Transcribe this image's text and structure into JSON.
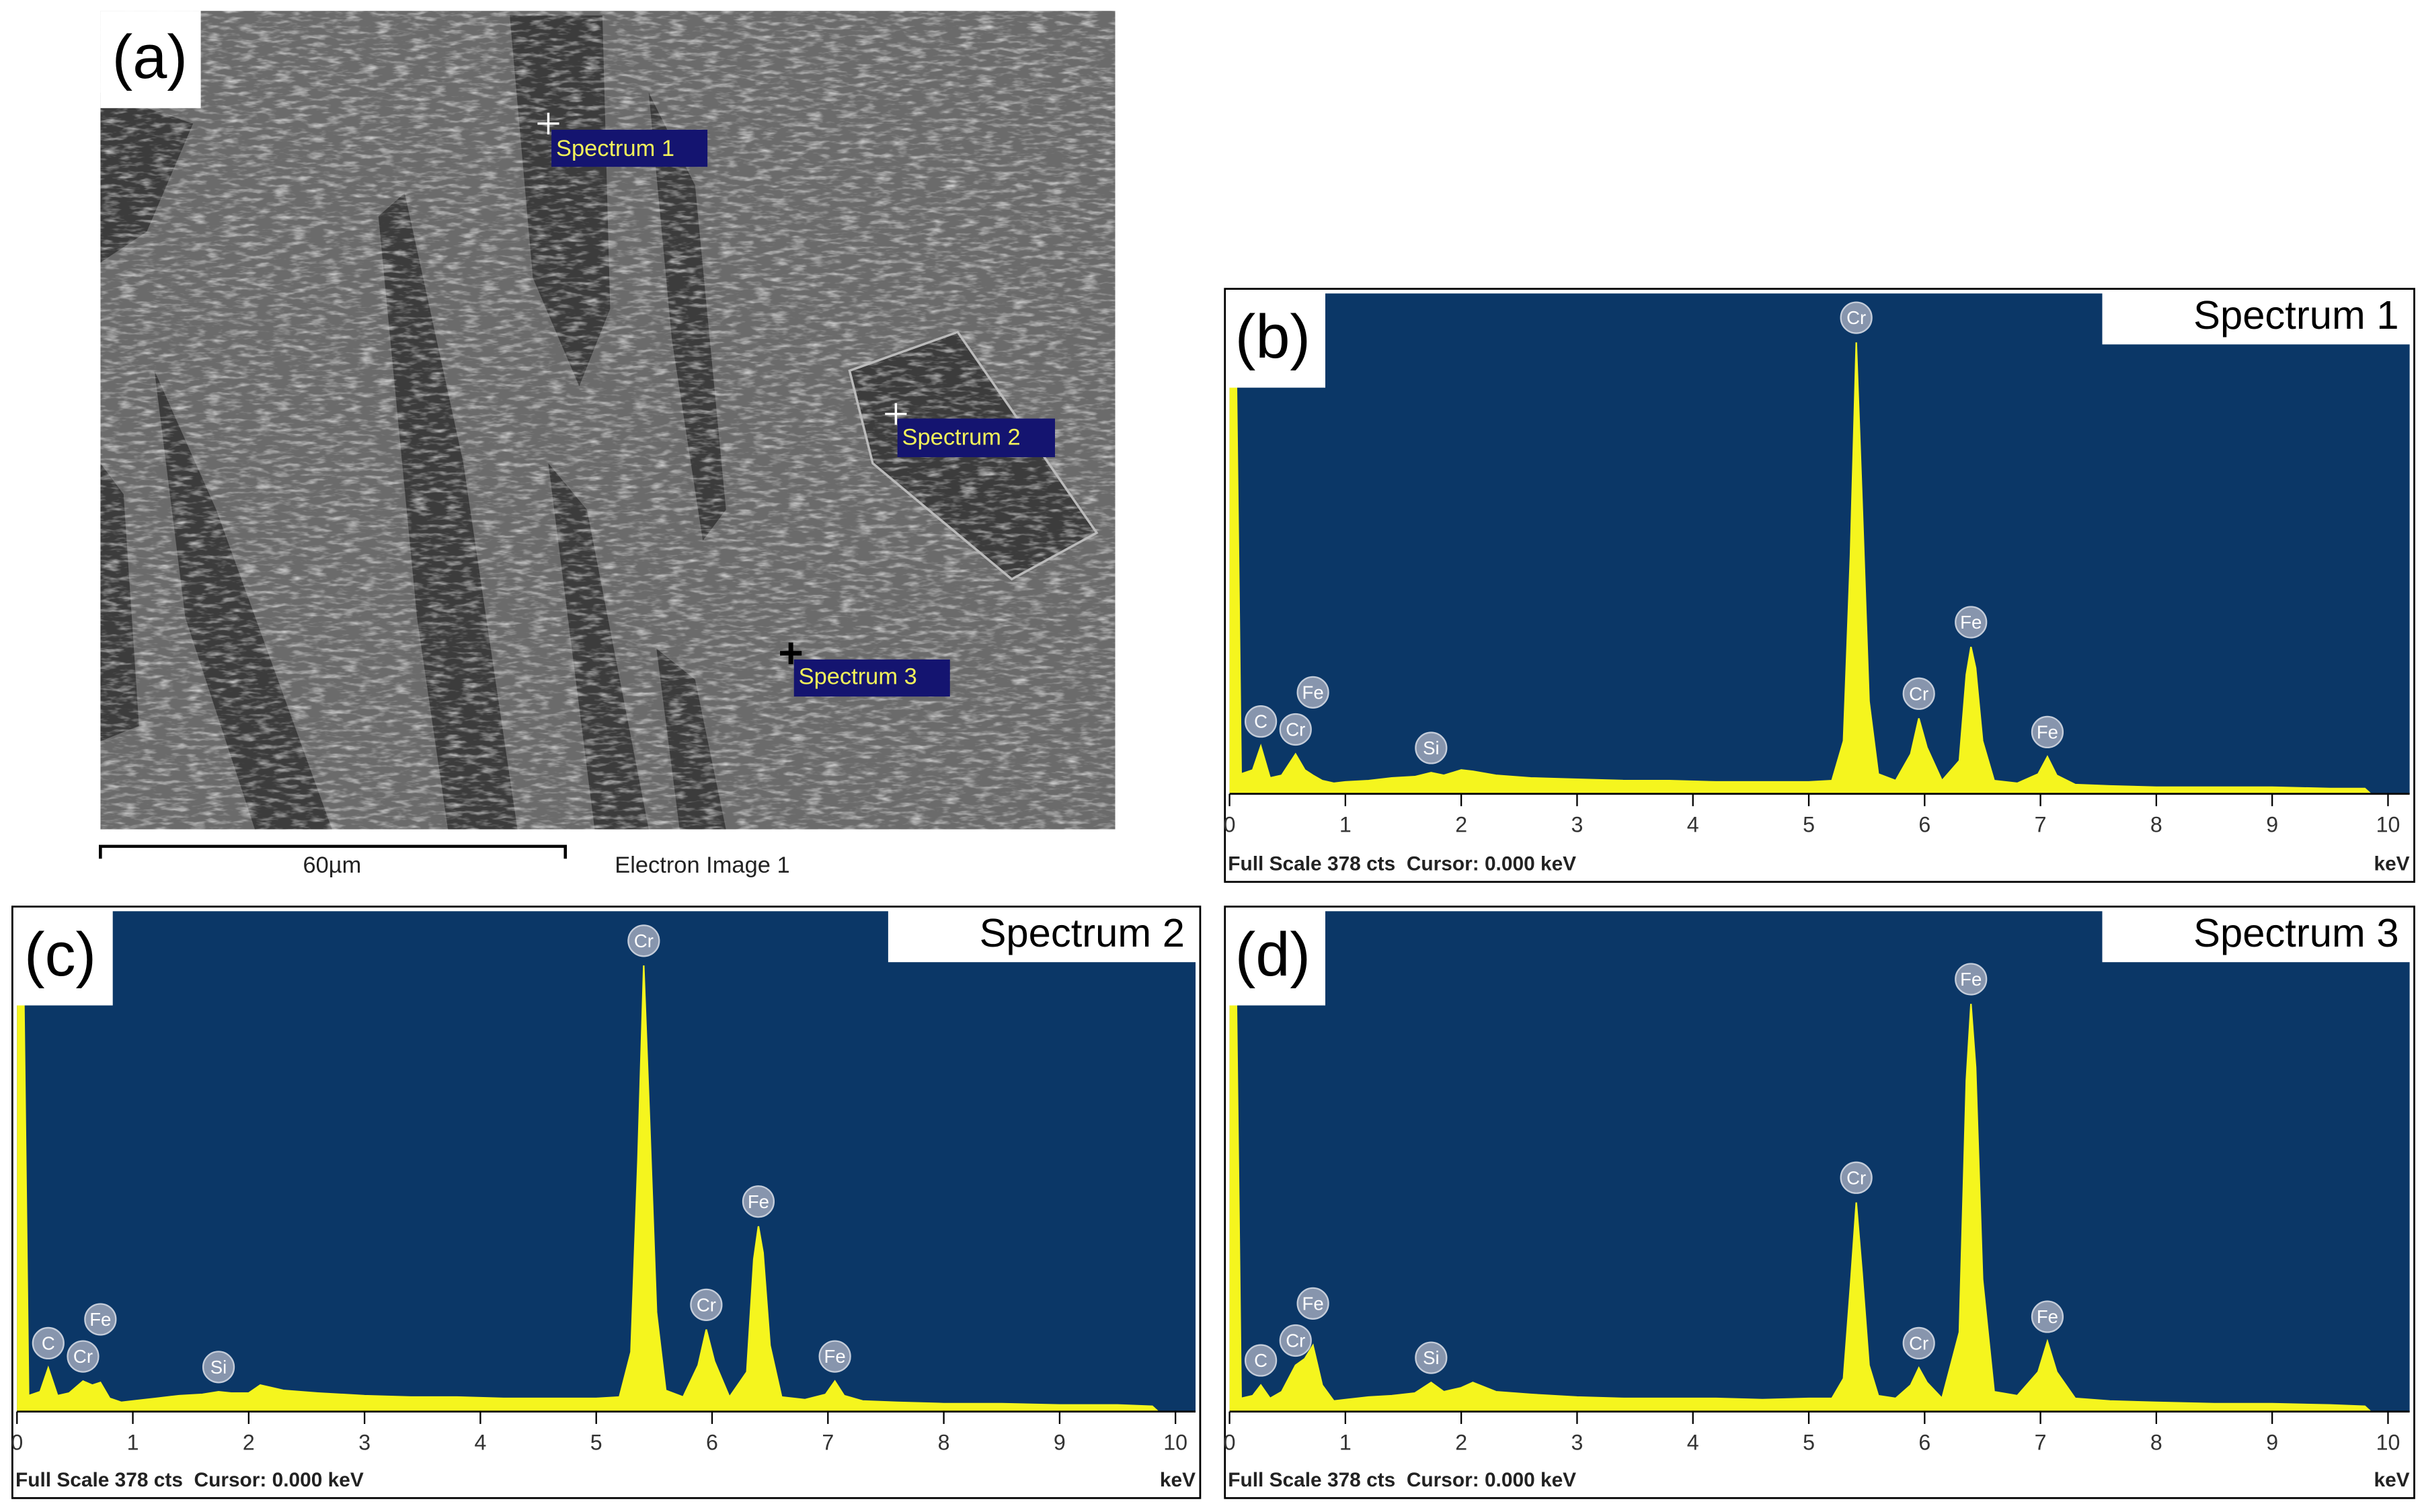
{
  "image": {
    "panel_label": "(a)",
    "markers": [
      "Spectrum 1",
      "Spectrum 2",
      "Spectrum 3"
    ],
    "scale_bar": "60µm",
    "caption": "Electron Image 1"
  },
  "chart_data": [
    {
      "type": "area",
      "panel_label": "(b)",
      "title": "Spectrum 1",
      "footer": "Full Scale 378 cts  Cursor: 0.000 keV",
      "x_label": "keV",
      "color": "#f5f51e",
      "x": [
        0,
        0.05,
        0.1,
        0.2,
        0.27,
        0.35,
        0.45,
        0.57,
        0.65,
        0.72,
        0.8,
        0.9,
        1.0,
        1.2,
        1.4,
        1.6,
        1.74,
        1.85,
        2.0,
        2.1,
        2.3,
        2.6,
        3.0,
        3.4,
        3.8,
        4.2,
        4.6,
        5.0,
        5.2,
        5.3,
        5.36,
        5.41,
        5.46,
        5.52,
        5.6,
        5.75,
        5.88,
        5.95,
        6.02,
        6.15,
        6.3,
        6.36,
        6.4,
        6.44,
        6.5,
        6.6,
        6.8,
        6.98,
        7.06,
        7.14,
        7.3,
        7.6,
        8.0,
        8.5,
        9.0,
        9.5,
        9.8,
        9.85
      ],
      "values": [
        378,
        378,
        15,
        18,
        36,
        12,
        14,
        30,
        18,
        14,
        10,
        8,
        9,
        10,
        12,
        13,
        16,
        14,
        18,
        17,
        14,
        12,
        11,
        10,
        10,
        9,
        9,
        9,
        10,
        40,
        180,
        341,
        220,
        70,
        15,
        10,
        30,
        57,
        35,
        10,
        25,
        90,
        111,
        95,
        40,
        10,
        8,
        15,
        28,
        14,
        7,
        6,
        5,
        5,
        5,
        4,
        4,
        0
      ],
      "peak_labels": [
        {
          "label": "C",
          "x": 0.27
        },
        {
          "label": "Cr",
          "x": 0.57
        },
        {
          "label": "Fe",
          "x": 0.72
        },
        {
          "label": "Si",
          "x": 1.74
        },
        {
          "label": "Cr",
          "x": 5.41
        },
        {
          "label": "Cr",
          "x": 5.95
        },
        {
          "label": "Fe",
          "x": 6.4
        },
        {
          "label": "Fe",
          "x": 7.06
        }
      ],
      "xlim": [
        0,
        10
      ],
      "xticks": [
        0,
        1,
        2,
        3,
        4,
        5,
        6,
        7,
        8,
        9,
        10
      ],
      "ylim": [
        0,
        378
      ]
    },
    {
      "type": "area",
      "panel_label": "(c)",
      "title": "Spectrum 2",
      "footer": "Full Scale 378 cts  Cursor: 0.000 keV",
      "x_label": "keV",
      "color": "#f5f51e",
      "x": [
        0,
        0.05,
        0.1,
        0.2,
        0.27,
        0.35,
        0.45,
        0.57,
        0.65,
        0.72,
        0.8,
        0.9,
        1.0,
        1.2,
        1.4,
        1.6,
        1.74,
        1.85,
        2.0,
        2.1,
        2.3,
        2.6,
        3.0,
        3.4,
        3.8,
        4.2,
        4.6,
        5.0,
        5.2,
        5.3,
        5.36,
        5.41,
        5.46,
        5.52,
        5.6,
        5.75,
        5.88,
        5.95,
        6.02,
        6.15,
        6.3,
        6.36,
        6.4,
        6.44,
        6.5,
        6.6,
        6.8,
        6.98,
        7.06,
        7.14,
        7.3,
        7.6,
        8.0,
        8.5,
        9.0,
        9.5,
        9.8,
        9.85
      ],
      "values": [
        378,
        378,
        12,
        15,
        33,
        12,
        14,
        23,
        20,
        22,
        10,
        7,
        8,
        10,
        12,
        13,
        15,
        14,
        14,
        20,
        16,
        14,
        12,
        11,
        11,
        10,
        10,
        10,
        11,
        45,
        190,
        337,
        220,
        75,
        16,
        11,
        35,
        62,
        38,
        11,
        30,
        115,
        140,
        120,
        50,
        11,
        9,
        13,
        23,
        12,
        8,
        7,
        6,
        6,
        5,
        5,
        4,
        0
      ],
      "peak_labels": [
        {
          "label": "C",
          "x": 0.27
        },
        {
          "label": "Cr",
          "x": 0.57
        },
        {
          "label": "Fe",
          "x": 0.72
        },
        {
          "label": "Si",
          "x": 1.74
        },
        {
          "label": "Cr",
          "x": 5.41
        },
        {
          "label": "Cr",
          "x": 5.95
        },
        {
          "label": "Fe",
          "x": 6.4
        },
        {
          "label": "Fe",
          "x": 7.06
        }
      ],
      "xlim": [
        0,
        10
      ],
      "xticks": [
        0,
        1,
        2,
        3,
        4,
        5,
        6,
        7,
        8,
        9,
        10
      ],
      "ylim": [
        0,
        378
      ]
    },
    {
      "type": "area",
      "panel_label": "(d)",
      "title": "Spectrum 3",
      "footer": "Full Scale 378 cts  Cursor: 0.000 keV",
      "x_label": "keV",
      "color": "#f5f51e",
      "x": [
        0,
        0.05,
        0.1,
        0.2,
        0.27,
        0.35,
        0.45,
        0.57,
        0.65,
        0.72,
        0.8,
        0.9,
        1.0,
        1.2,
        1.4,
        1.6,
        1.74,
        1.85,
        2.0,
        2.1,
        2.3,
        2.6,
        3.0,
        3.4,
        3.8,
        4.2,
        4.6,
        5.0,
        5.2,
        5.3,
        5.36,
        5.41,
        5.46,
        5.52,
        5.6,
        5.75,
        5.88,
        5.95,
        6.02,
        6.15,
        6.3,
        6.36,
        6.4,
        6.44,
        6.5,
        6.6,
        6.8,
        6.98,
        7.06,
        7.14,
        7.3,
        7.6,
        8.0,
        8.5,
        9.0,
        9.5,
        9.8,
        9.85
      ],
      "values": [
        378,
        378,
        10,
        12,
        20,
        10,
        15,
        35,
        40,
        50,
        20,
        8,
        9,
        11,
        12,
        14,
        22,
        15,
        18,
        22,
        15,
        13,
        11,
        10,
        10,
        10,
        9,
        10,
        10,
        25,
        95,
        158,
        105,
        35,
        12,
        10,
        20,
        33,
        22,
        10,
        60,
        250,
        308,
        260,
        100,
        15,
        12,
        30,
        53,
        30,
        10,
        8,
        7,
        6,
        6,
        5,
        4,
        0
      ],
      "peak_labels": [
        {
          "label": "C",
          "x": 0.27
        },
        {
          "label": "Cr",
          "x": 0.57
        },
        {
          "label": "Fe",
          "x": 0.72
        },
        {
          "label": "Si",
          "x": 1.74
        },
        {
          "label": "Cr",
          "x": 5.41
        },
        {
          "label": "Cr",
          "x": 5.95
        },
        {
          "label": "Fe",
          "x": 6.4
        },
        {
          "label": "Fe",
          "x": 7.06
        }
      ],
      "xlim": [
        0,
        10
      ],
      "xticks": [
        0,
        1,
        2,
        3,
        4,
        5,
        6,
        7,
        8,
        9,
        10
      ],
      "ylim": [
        0,
        378
      ]
    }
  ]
}
